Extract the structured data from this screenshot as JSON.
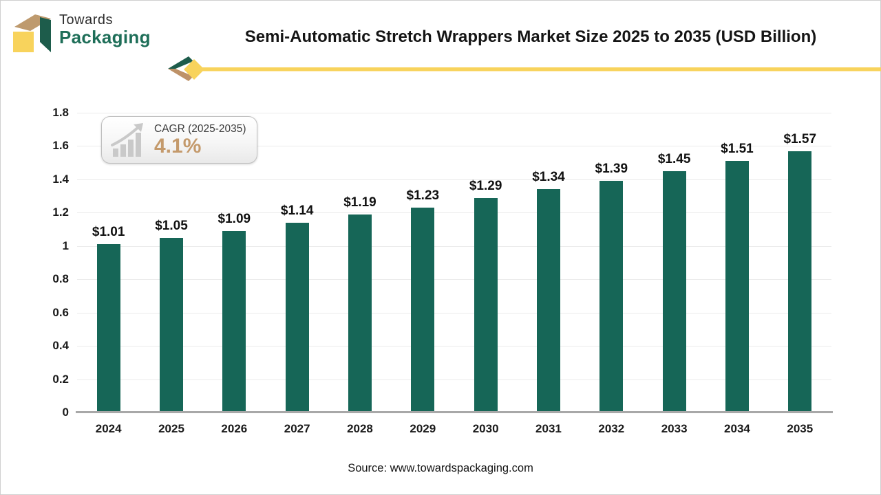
{
  "brand": {
    "line1": "Towards",
    "line2": "Packaging"
  },
  "header": {
    "title": "Semi-Automatic Stretch Wrappers Market Size 2025 to 2035 (USD Billion)"
  },
  "badge": {
    "label": "CAGR (2025-2035)",
    "value": "4.1%"
  },
  "source": "Source: www.towardspackaging.com",
  "colors": {
    "bar": "#166657",
    "brand_green": "#1e6e58",
    "brand_tan": "#be9a6e",
    "brand_yellow": "#f8d35c",
    "badge_value": "#c49a6c",
    "axis_line": "#a8a8a8",
    "gridline": "#ebebeb"
  },
  "chart_data": {
    "type": "bar",
    "title": "Semi-Automatic Stretch Wrappers Market Size 2025 to 2035 (USD Billion)",
    "categories": [
      "2024",
      "2025",
      "2026",
      "2027",
      "2028",
      "2029",
      "2030",
      "2031",
      "2032",
      "2033",
      "2034",
      "2035"
    ],
    "values": [
      1.01,
      1.05,
      1.09,
      1.14,
      1.19,
      1.23,
      1.29,
      1.34,
      1.39,
      1.45,
      1.51,
      1.57
    ],
    "labels": [
      "$1.01",
      "$1.05",
      "$1.09",
      "$1.14",
      "$1.19",
      "$1.23",
      "$1.29",
      "$1.34",
      "$1.39",
      "$1.45",
      "$1.51",
      "$1.57"
    ],
    "xlabel": "",
    "ylabel": "",
    "ylim": [
      0,
      1.8
    ],
    "ytick_step": 0.2,
    "grid": true,
    "legend": false,
    "bar_color": "#166657"
  }
}
